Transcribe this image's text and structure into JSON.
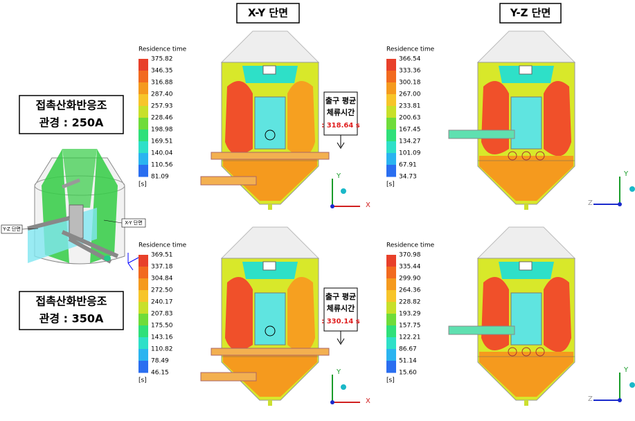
{
  "headers": {
    "xy": "X-Y 단면",
    "yz": "Y-Z 단면"
  },
  "diagram_labels": {
    "yz": "Y-Z 단면",
    "xy": "X-Y 단면"
  },
  "axis_labels": {
    "x": "X",
    "y": "Y",
    "z": "Z"
  },
  "rows": [
    {
      "title": "접촉산화반응조",
      "pipe": "관경 : 250A",
      "colorbars": [
        {
          "title": "Residence time",
          "unit": "[s]",
          "ticks": [
            "375.82",
            "346.35",
            "316.88",
            "287.40",
            "257.93",
            "228.46",
            "198.98",
            "169.51",
            "140.04",
            "110.56",
            "81.09"
          ]
        },
        {
          "title": "Residence time",
          "unit": "[s]",
          "ticks": [
            "366.54",
            "333.36",
            "300.18",
            "267.00",
            "233.81",
            "200.63",
            "167.45",
            "134.27",
            "101.09",
            "67.91",
            "34.73"
          ]
        }
      ],
      "callout": {
        "line1": "출구 평균",
        "line2": "체류시간",
        "value": ": 318.64 s"
      }
    },
    {
      "title": "접촉산화반응조",
      "pipe": "관경 : 350A",
      "colorbars": [
        {
          "title": "Residence time",
          "unit": "[s]",
          "ticks": [
            "369.51",
            "337.18",
            "304.84",
            "272.50",
            "240.17",
            "207.83",
            "175.50",
            "143.16",
            "110.82",
            "78.49",
            "46.15"
          ]
        },
        {
          "title": "Residence time",
          "unit": "[s]",
          "ticks": [
            "370.98",
            "335.44",
            "299.90",
            "264.36",
            "228.82",
            "193.29",
            "157.75",
            "122.21",
            "86.67",
            "51.14",
            "15.60"
          ]
        }
      ],
      "callout": {
        "line1": "출구 평균",
        "line2": "체류시간",
        "value": ": 330.14 s"
      }
    }
  ]
}
